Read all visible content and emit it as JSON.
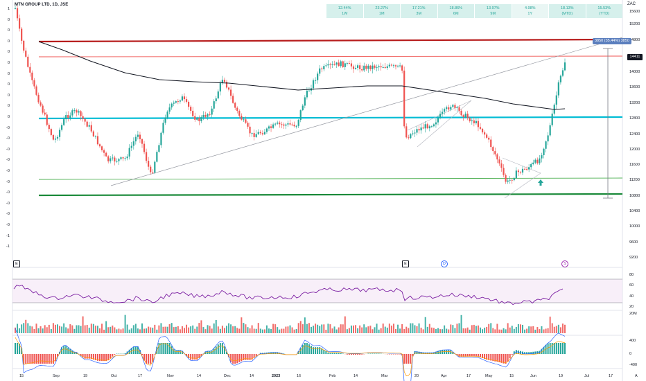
{
  "title": "MTN GROUP LTD, 1D, JSE",
  "currency": "ZAC",
  "performance": [
    {
      "value": "12.44%",
      "period": "1W"
    },
    {
      "value": "23.27%",
      "period": "1M"
    },
    {
      "value": "17.21%",
      "period": "3M"
    },
    {
      "value": "18.86%",
      "period": "6M"
    },
    {
      "value": "13.97%",
      "period": "9M"
    },
    {
      "value": "4.98%",
      "period": "1Y"
    },
    {
      "value": "18.13%",
      "period": "(MTD)"
    },
    {
      "value": "15.53%",
      "period": "(YTD)"
    }
  ],
  "price_axis_labels": [
    "15600",
    "15200",
    "14800",
    "14411",
    "14000",
    "13600",
    "13200",
    "12800",
    "12400",
    "12000",
    "11600",
    "11200",
    "10800",
    "10400",
    "10000",
    "9600",
    "9200"
  ],
  "last_price": "14411",
  "measure_label": "3850 (35.44%) 3850",
  "left_axis_labels": [
    "1",
    "0",
    "0",
    "0",
    "0",
    "0",
    "0",
    "0",
    "0",
    "0",
    "0",
    "-0",
    "-0",
    "-0",
    "-0",
    "-0",
    "-0",
    "-0",
    "-0",
    "-0",
    "-0",
    "-1",
    "-1"
  ],
  "date_labels": [
    "15",
    "Sep",
    "19",
    "Oct",
    "17",
    "Nov",
    "14",
    "Dec",
    "14",
    "2023",
    "16",
    "Feb",
    "14",
    "Mar",
    "20",
    "Apr",
    "17",
    "May",
    "15",
    "Jun",
    "19",
    "Jul",
    "17",
    "A"
  ],
  "indicator_axes": {
    "rsi": [
      "80",
      "60",
      "40",
      "20"
    ],
    "volume": [
      "20M"
    ],
    "macd": [
      "400",
      "0",
      "-400"
    ]
  },
  "events": {
    "earnings1": "E",
    "earnings2": "E",
    "dividend": "D",
    "split": "S"
  },
  "colors": {
    "up": "#26a69a",
    "down": "#ef5350",
    "resistance": "#b71c1c",
    "support_cyan": "#00bcd4",
    "support_green": "#1b8a3a",
    "ma": "#131722",
    "rsi": "#7b1fa2"
  }
}
